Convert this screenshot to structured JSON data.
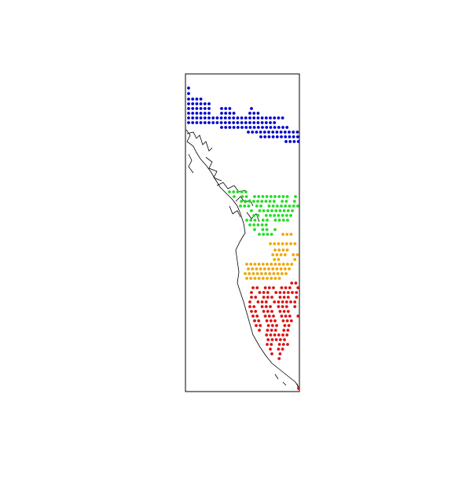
{
  "map": {
    "colors": {
      "blue": "#0000cc",
      "green": "#22dd22",
      "orange": "#f0a500",
      "red": "#dd1111",
      "outline": "#000000"
    },
    "regions": [
      {
        "name": "blue",
        "color_key": "blue",
        "count": 120
      },
      {
        "name": "green",
        "color_key": "green",
        "count": 95
      },
      {
        "name": "orange",
        "color_key": "orange",
        "count": 70
      },
      {
        "name": "red",
        "color_key": "red",
        "count": 150
      }
    ]
  }
}
